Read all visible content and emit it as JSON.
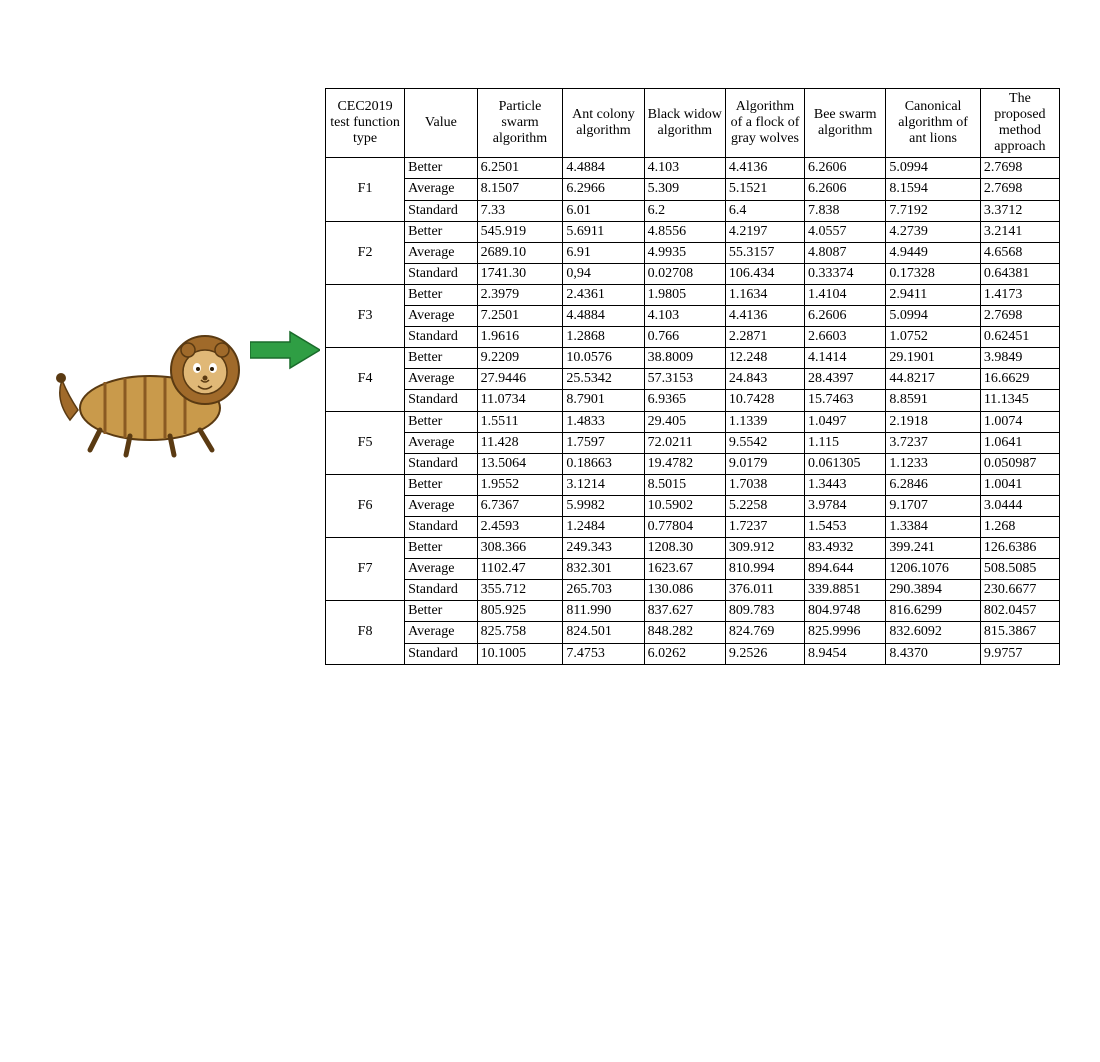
{
  "figure": {
    "description": "lion-antlion-hybrid-illustration",
    "body_color": "#c99a4b",
    "mane_color": "#a06a2a",
    "outline_color": "#5a3a12"
  },
  "arrow": {
    "fill": "#2f9e44",
    "stroke": "#1a6b2b"
  },
  "table": {
    "border_color": "#000000",
    "background": "#ffffff",
    "font_family": "Times New Roman",
    "font_size_pt": 10,
    "headers": [
      "CEC2019 test function type",
      "Value",
      "Particle swarm algorithm",
      "Ant colony algorithm",
      "Black widow algorithm",
      "Algorithm of a flock of gray wolves",
      "Bee swarm algorithm",
      "Canonical algorithm of ant lions",
      "The proposed method approach"
    ],
    "value_labels": [
      "Better",
      "Average",
      "Standard"
    ],
    "groups": [
      {
        "name": "F1",
        "rows": [
          [
            "6.2501",
            "4.4884",
            "4.103",
            "4.4136",
            "6.2606",
            "5.0994",
            "2.7698"
          ],
          [
            "8.1507",
            "6.2966",
            "5.309",
            "5.1521",
            "6.2606",
            "8.1594",
            "2.7698"
          ],
          [
            "7.33",
            "6.01",
            "6.2",
            "6.4",
            "7.838",
            "7.7192",
            "3.3712"
          ]
        ]
      },
      {
        "name": "F2",
        "rows": [
          [
            "545.919",
            "5.6911",
            "4.8556",
            "4.2197",
            "4.0557",
            "4.2739",
            "3.2141"
          ],
          [
            "2689.10",
            "6.91",
            "4.9935",
            "55.3157",
            "4.8087",
            "4.9449",
            "4.6568"
          ],
          [
            "1741.30",
            "0,94",
            "0.02708",
            "106.434",
            "0.33374",
            "0.17328",
            "0.64381"
          ]
        ]
      },
      {
        "name": "F3",
        "rows": [
          [
            "2.3979",
            "2.4361",
            "1.9805",
            "1.1634",
            "1.4104",
            "2.9411",
            "1.4173"
          ],
          [
            "7.2501",
            "4.4884",
            "4.103",
            "4.4136",
            "6.2606",
            "5.0994",
            "2.7698"
          ],
          [
            "1.9616",
            "1.2868",
            "0.766",
            "2.2871",
            "2.6603",
            "1.0752",
            "0.62451"
          ]
        ]
      },
      {
        "name": "F4",
        "rows": [
          [
            "9.2209",
            "10.0576",
            "38.8009",
            "12.248",
            "4.1414",
            "29.1901",
            "3.9849"
          ],
          [
            "27.9446",
            "25.5342",
            "57.3153",
            "24.843",
            "28.4397",
            "44.8217",
            "16.6629"
          ],
          [
            "11.0734",
            "8.7901",
            "6.9365",
            "10.7428",
            "15.7463",
            "8.8591",
            "11.1345"
          ]
        ]
      },
      {
        "name": "F5",
        "rows": [
          [
            "1.5511",
            "1.4833",
            "29.405",
            "1.1339",
            "1.0497",
            "2.1918",
            "1.0074"
          ],
          [
            "11.428",
            "1.7597",
            "72.0211",
            "9.5542",
            "1.115",
            "3.7237",
            "1.0641"
          ],
          [
            "13.5064",
            "0.18663",
            "19.4782",
            "9.0179",
            "0.061305",
            "1.1233",
            "0.050987"
          ]
        ]
      },
      {
        "name": "F6",
        "rows": [
          [
            "1.9552",
            "3.1214",
            "8.5015",
            "1.7038",
            "1.3443",
            "6.2846",
            "1.0041"
          ],
          [
            "6.7367",
            "5.9982",
            "10.5902",
            "5.2258",
            "3.9784",
            "9.1707",
            "3.0444"
          ],
          [
            "2.4593",
            "1.2484",
            "0.77804",
            "1.7237",
            "1.5453",
            "1.3384",
            "1.268"
          ]
        ]
      },
      {
        "name": "F7",
        "rows": [
          [
            "308.366",
            "249.343",
            "1208.30",
            "309.912",
            "83.4932",
            "399.241",
            "126.6386"
          ],
          [
            "1102.47",
            "832.301",
            "1623.67",
            "810.994",
            "894.644",
            "1206.1076",
            "508.5085"
          ],
          [
            "355.712",
            "265.703",
            "130.086",
            "376.011",
            "339.8851",
            "290.3894",
            "230.6677"
          ]
        ]
      },
      {
        "name": "F8",
        "rows": [
          [
            "805.925",
            "811.990",
            "837.627",
            "809.783",
            "804.9748",
            "816.6299",
            "802.0457"
          ],
          [
            "825.758",
            "824.501",
            "848.282",
            "824.769",
            "825.9996",
            "832.6092",
            "815.3867"
          ],
          [
            "10.1005",
            "7.4753",
            "6.0262",
            "9.2526",
            "8.9454",
            "8.4370",
            "9.9757"
          ]
        ]
      }
    ]
  }
}
